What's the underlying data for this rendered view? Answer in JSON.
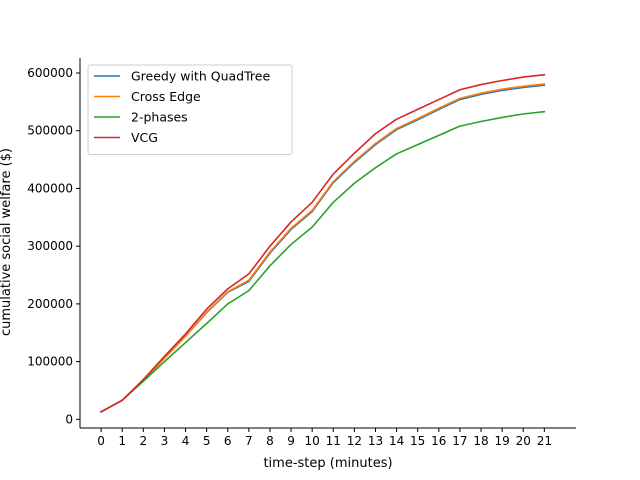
{
  "chart_data": {
    "type": "line",
    "xlabel": "time-step (minutes)",
    "ylabel": "cumulative social welfare ($)",
    "x": [
      0,
      1,
      2,
      3,
      4,
      5,
      6,
      7,
      8,
      9,
      10,
      11,
      12,
      13,
      14,
      15,
      16,
      17,
      18,
      19,
      20,
      21
    ],
    "xlim": [
      -1,
      22.5
    ],
    "ylim": [
      -15000,
      626000
    ],
    "yticks": [
      0,
      100000,
      200000,
      300000,
      400000,
      500000,
      600000
    ],
    "grid": false,
    "legend_position": "upper-left",
    "series": [
      {
        "name": "Greedy with QuadTree",
        "color": "#1f77b4",
        "values": [
          13000,
          33000,
          68000,
          106000,
          144000,
          185000,
          220000,
          239000,
          288000,
          329000,
          360000,
          410000,
          445000,
          476000,
          502000,
          519000,
          537000,
          554000,
          563000,
          570000,
          575000,
          579000
        ]
      },
      {
        "name": "Cross Edge",
        "color": "#ff7f0e",
        "values": [
          13000,
          33000,
          68000,
          106000,
          144000,
          186000,
          221000,
          241000,
          290000,
          331000,
          362000,
          412000,
          447000,
          478000,
          504000,
          521000,
          539000,
          556000,
          565000,
          572000,
          577000,
          581000
        ]
      },
      {
        "name": "2-phases",
        "color": "#2ca02c",
        "values": [
          13000,
          33000,
          66000,
          100000,
          133000,
          166000,
          200000,
          223000,
          266000,
          303000,
          333000,
          376000,
          409000,
          436000,
          460000,
          476000,
          492000,
          508000,
          516000,
          523000,
          529000,
          533000
        ]
      },
      {
        "name": "VCG",
        "color": "#d62728",
        "values": [
          13000,
          33000,
          69000,
          109000,
          148000,
          191000,
          226000,
          252000,
          300000,
          342000,
          376000,
          425000,
          461000,
          495000,
          520000,
          537000,
          554000,
          571000,
          580000,
          587000,
          593000,
          597000
        ]
      }
    ]
  }
}
